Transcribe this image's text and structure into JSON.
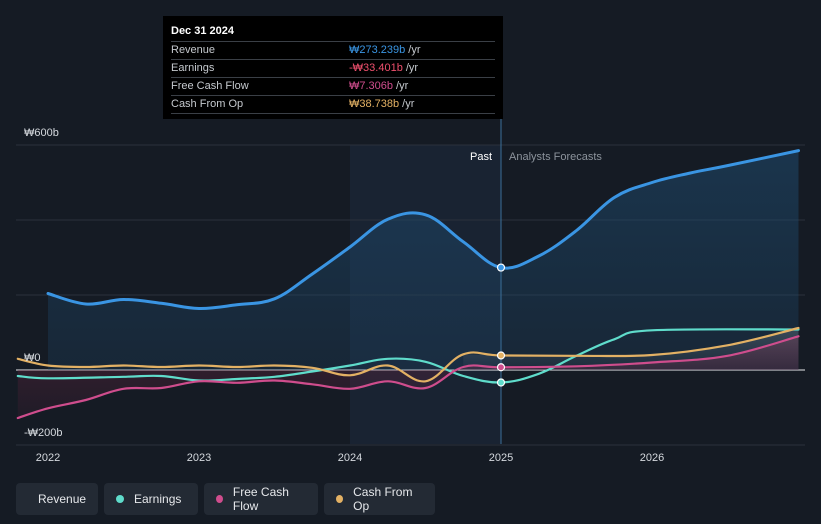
{
  "chart_data": {
    "type": "line",
    "currency": "₩",
    "x_ticks": [
      "2022",
      "2023",
      "2024",
      "2025",
      "2026"
    ],
    "y_ticks": [
      {
        "value": 600,
        "label": "₩600b"
      },
      {
        "value": 0,
        "label": "₩0"
      },
      {
        "value": -200,
        "label": "-₩200b"
      }
    ],
    "ylim": [
      -200,
      600
    ],
    "xlim": [
      2021.8,
      2026.97
    ],
    "past_label": "Past",
    "forecast_label": "Analysts Forecasts",
    "divider_x": 2025.0,
    "highlight_start_x": 2024.0,
    "series": [
      {
        "name": "Revenue",
        "color": "#3a95e3",
        "fill": true,
        "points": [
          [
            2022.0,
            204
          ],
          [
            2022.25,
            176
          ],
          [
            2022.5,
            188
          ],
          [
            2022.75,
            178
          ],
          [
            2023.0,
            164
          ],
          [
            2023.25,
            174
          ],
          [
            2023.5,
            190
          ],
          [
            2023.75,
            256
          ],
          [
            2024.0,
            328
          ],
          [
            2024.25,
            402
          ],
          [
            2024.5,
            414
          ],
          [
            2024.75,
            342
          ],
          [
            2025.0,
            273.2
          ],
          [
            2025.25,
            304
          ],
          [
            2025.5,
            372
          ],
          [
            2025.75,
            460
          ],
          [
            2026.0,
            500
          ],
          [
            2026.25,
            525
          ],
          [
            2026.5,
            545
          ],
          [
            2026.97,
            585
          ]
        ]
      },
      {
        "name": "Earnings",
        "color": "#5fdccb",
        "fill": false,
        "points": [
          [
            2021.8,
            -16
          ],
          [
            2022.0,
            -22
          ],
          [
            2022.5,
            -18
          ],
          [
            2022.75,
            -16
          ],
          [
            2023.0,
            -28
          ],
          [
            2023.25,
            -24
          ],
          [
            2023.5,
            -18
          ],
          [
            2023.75,
            -4
          ],
          [
            2024.0,
            12
          ],
          [
            2024.25,
            30
          ],
          [
            2024.5,
            22
          ],
          [
            2024.75,
            -16
          ],
          [
            2025.0,
            -33.4
          ],
          [
            2025.25,
            -10
          ],
          [
            2025.5,
            38
          ],
          [
            2025.75,
            82
          ],
          [
            2026.0,
            106
          ],
          [
            2026.97,
            108
          ]
        ]
      },
      {
        "name": "Free Cash Flow",
        "color": "#cf4d8d",
        "fill": false,
        "points": [
          [
            2021.8,
            -128
          ],
          [
            2022.0,
            -102
          ],
          [
            2022.25,
            -80
          ],
          [
            2022.5,
            -50
          ],
          [
            2022.75,
            -48
          ],
          [
            2023.0,
            -30
          ],
          [
            2023.25,
            -34
          ],
          [
            2023.5,
            -28
          ],
          [
            2023.75,
            -38
          ],
          [
            2024.0,
            -50
          ],
          [
            2024.25,
            -30
          ],
          [
            2024.5,
            -48
          ],
          [
            2024.75,
            8
          ],
          [
            2025.0,
            7.3
          ],
          [
            2025.5,
            10
          ],
          [
            2026.0,
            20
          ],
          [
            2026.5,
            38
          ],
          [
            2026.97,
            90
          ]
        ]
      },
      {
        "name": "Cash From Op",
        "color": "#e3b164",
        "fill": false,
        "points": [
          [
            2021.8,
            30
          ],
          [
            2022.0,
            12
          ],
          [
            2022.25,
            8
          ],
          [
            2022.5,
            12
          ],
          [
            2022.75,
            8
          ],
          [
            2023.0,
            12
          ],
          [
            2023.25,
            8
          ],
          [
            2023.5,
            12
          ],
          [
            2023.75,
            6
          ],
          [
            2024.0,
            -14
          ],
          [
            2024.25,
            12
          ],
          [
            2024.5,
            -30
          ],
          [
            2024.75,
            42
          ],
          [
            2025.0,
            38.7
          ],
          [
            2025.5,
            38
          ],
          [
            2026.0,
            40
          ],
          [
            2026.5,
            66
          ],
          [
            2026.97,
            112
          ]
        ]
      }
    ]
  },
  "tooltip": {
    "date": "Dec 31 2024",
    "unit": "/yr",
    "rows": [
      {
        "label": "Revenue",
        "value": "₩273.239b",
        "color": "#3a95e3"
      },
      {
        "label": "Earnings",
        "value": "-₩33.401b",
        "color": "#f0506e"
      },
      {
        "label": "Free Cash Flow",
        "value": "₩7.306b",
        "color": "#cf4d8d"
      },
      {
        "label": "Cash From Op",
        "value": "₩38.738b",
        "color": "#e3b164"
      }
    ]
  },
  "legend": [
    {
      "label": "Revenue",
      "color": "#3a95e3"
    },
    {
      "label": "Earnings",
      "color": "#5fdccb"
    },
    {
      "label": "Free Cash Flow",
      "color": "#cf4d8d"
    },
    {
      "label": "Cash From Op",
      "color": "#e3b164"
    }
  ]
}
